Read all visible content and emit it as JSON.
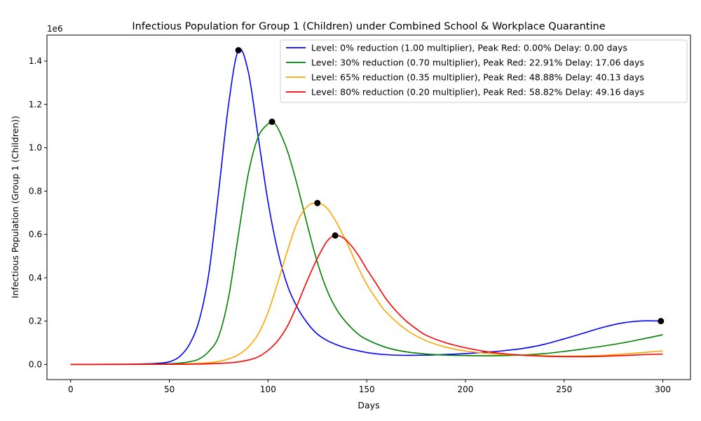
{
  "chart_data": {
    "type": "line",
    "title": "Infectious Population for Group 1 (Children) under Combined School & Workplace Quarantine",
    "xlabel": "Days",
    "ylabel": "Infectious Population (Group 1 (Children))",
    "y_offset_label": "1e6",
    "xlim": [
      -12,
      314
    ],
    "ylim": [
      -0.07,
      1.52
    ],
    "y_units": "millions",
    "x_ticks": [
      0,
      50,
      100,
      150,
      200,
      250,
      300
    ],
    "x_tick_labels": [
      "0",
      "50",
      "100",
      "150",
      "200",
      "250",
      "300"
    ],
    "y_ticks": [
      0.0,
      0.2,
      0.4,
      0.6,
      0.8,
      1.0,
      1.2,
      1.4
    ],
    "y_tick_labels": [
      "0.0",
      "0.2",
      "0.4",
      "0.6",
      "0.8",
      "1.0",
      "1.2",
      "1.4"
    ],
    "grid": false,
    "legend_position": "top-right",
    "series": [
      {
        "name": "Level: 0% reduction (1.00 multiplier), Peak Red: 0.00% Delay: 0.00 days",
        "color": "#0000ff",
        "x": [
          0,
          20,
          30,
          40,
          45,
          50,
          55,
          60,
          65,
          70,
          75,
          80,
          85,
          90,
          95,
          100,
          105,
          110,
          115,
          120,
          125,
          130,
          135,
          140,
          150,
          160,
          170,
          180,
          190,
          200,
          210,
          220,
          230,
          240,
          250,
          260,
          270,
          280,
          290,
          300
        ],
        "y": [
          0,
          0.0005,
          0.001,
          0.003,
          0.006,
          0.012,
          0.035,
          0.09,
          0.2,
          0.42,
          0.8,
          1.2,
          1.45,
          1.35,
          1.05,
          0.75,
          0.52,
          0.36,
          0.26,
          0.19,
          0.14,
          0.11,
          0.09,
          0.075,
          0.055,
          0.045,
          0.042,
          0.043,
          0.046,
          0.05,
          0.056,
          0.064,
          0.075,
          0.093,
          0.118,
          0.145,
          0.172,
          0.192,
          0.201,
          0.2
        ],
        "peak": {
          "x": 85,
          "y": 1.45
        }
      },
      {
        "name": "Level: 30% reduction (0.70 multiplier), Peak Red: 22.91% Delay: 17.06 days",
        "color": "#008000",
        "x": [
          0,
          30,
          40,
          50,
          55,
          60,
          65,
          70,
          75,
          80,
          85,
          90,
          95,
          100,
          102,
          105,
          110,
          115,
          120,
          125,
          130,
          135,
          140,
          145,
          150,
          160,
          170,
          180,
          190,
          200,
          210,
          220,
          230,
          240,
          250,
          260,
          270,
          280,
          290,
          300
        ],
        "y": [
          0,
          0.0005,
          0.001,
          0.003,
          0.006,
          0.012,
          0.025,
          0.06,
          0.13,
          0.31,
          0.6,
          0.88,
          1.05,
          1.11,
          1.12,
          1.09,
          0.98,
          0.82,
          0.64,
          0.47,
          0.34,
          0.25,
          0.19,
          0.145,
          0.115,
          0.078,
          0.058,
          0.048,
          0.043,
          0.041,
          0.04,
          0.041,
          0.044,
          0.05,
          0.06,
          0.072,
          0.085,
          0.1,
          0.118,
          0.137
        ],
        "peak": {
          "x": 102,
          "y": 1.12
        }
      },
      {
        "name": "Level: 65% reduction (0.35 multiplier), Peak Red: 48.88% Delay: 40.13 days",
        "color": "#ffa500",
        "x": [
          0,
          40,
          50,
          60,
          70,
          75,
          80,
          85,
          90,
          95,
          100,
          105,
          110,
          115,
          120,
          125,
          130,
          135,
          140,
          145,
          150,
          155,
          160,
          170,
          180,
          190,
          200,
          210,
          220,
          230,
          240,
          250,
          260,
          270,
          280,
          290,
          300
        ],
        "y": [
          0,
          0.0005,
          0.001,
          0.003,
          0.008,
          0.014,
          0.025,
          0.045,
          0.08,
          0.14,
          0.24,
          0.38,
          0.53,
          0.66,
          0.73,
          0.745,
          0.72,
          0.65,
          0.56,
          0.46,
          0.37,
          0.3,
          0.24,
          0.16,
          0.11,
          0.08,
          0.062,
          0.052,
          0.046,
          0.043,
          0.04,
          0.038,
          0.039,
          0.042,
          0.048,
          0.055,
          0.063
        ],
        "peak": {
          "x": 125,
          "y": 0.745
        }
      },
      {
        "name": "Level: 80% reduction (0.20 multiplier), Peak Red: 58.82% Delay: 49.16 days",
        "color": "#ff0000",
        "x": [
          0,
          50,
          60,
          70,
          80,
          85,
          90,
          95,
          100,
          105,
          110,
          115,
          120,
          125,
          130,
          134,
          138,
          142,
          146,
          150,
          155,
          160,
          165,
          170,
          175,
          180,
          190,
          200,
          210,
          220,
          230,
          240,
          250,
          260,
          270,
          280,
          290,
          300
        ],
        "y": [
          0,
          0.0005,
          0.001,
          0.003,
          0.007,
          0.012,
          0.02,
          0.035,
          0.065,
          0.11,
          0.18,
          0.28,
          0.39,
          0.49,
          0.57,
          0.595,
          0.585,
          0.55,
          0.5,
          0.44,
          0.37,
          0.3,
          0.245,
          0.2,
          0.165,
          0.135,
          0.1,
          0.077,
          0.06,
          0.049,
          0.042,
          0.038,
          0.036,
          0.036,
          0.038,
          0.041,
          0.045,
          0.048
        ],
        "peak": {
          "x": 134,
          "y": 0.595
        }
      }
    ],
    "extra_markers": [
      {
        "x": 299,
        "y": 0.2
      }
    ],
    "marker_color": "#000000"
  }
}
